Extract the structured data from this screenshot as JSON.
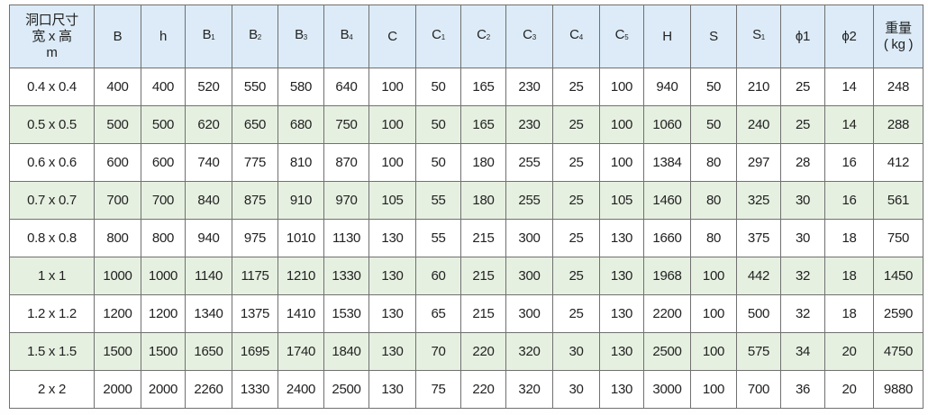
{
  "colors": {
    "header_bg": "#dcebf7",
    "alt_row_bg": "#e6f0e1",
    "border": "#707070"
  },
  "table": {
    "headers": [
      {
        "main": "洞口尺寸\n宽 x 高\nm",
        "sub": ""
      },
      {
        "main": "B",
        "sub": ""
      },
      {
        "main": "h",
        "sub": ""
      },
      {
        "main": "B",
        "sub": "1"
      },
      {
        "main": "B",
        "sub": "2"
      },
      {
        "main": "B",
        "sub": "3"
      },
      {
        "main": "B",
        "sub": "4"
      },
      {
        "main": "C",
        "sub": ""
      },
      {
        "main": "C",
        "sub": "1"
      },
      {
        "main": "C",
        "sub": "2"
      },
      {
        "main": "C",
        "sub": "3"
      },
      {
        "main": "C",
        "sub": "4"
      },
      {
        "main": "C",
        "sub": "5"
      },
      {
        "main": "H",
        "sub": ""
      },
      {
        "main": "S",
        "sub": ""
      },
      {
        "main": "S",
        "sub": "1"
      },
      {
        "main": "ϕ1",
        "sub": ""
      },
      {
        "main": "ϕ2",
        "sub": ""
      },
      {
        "main": "重量\n( kg )",
        "sub": ""
      }
    ],
    "rows": [
      [
        "0.4 x 0.4",
        "400",
        "400",
        "520",
        "550",
        "580",
        "640",
        "100",
        "50",
        "165",
        "230",
        "25",
        "100",
        "940",
        "50",
        "210",
        "25",
        "14",
        "248"
      ],
      [
        "0.5 x 0.5",
        "500",
        "500",
        "620",
        "650",
        "680",
        "750",
        "100",
        "50",
        "165",
        "230",
        "25",
        "100",
        "1060",
        "50",
        "240",
        "25",
        "14",
        "288"
      ],
      [
        "0.6 x 0.6",
        "600",
        "600",
        "740",
        "775",
        "810",
        "870",
        "100",
        "50",
        "180",
        "255",
        "25",
        "100",
        "1384",
        "80",
        "297",
        "28",
        "16",
        "412"
      ],
      [
        "0.7 x 0.7",
        "700",
        "700",
        "840",
        "875",
        "910",
        "970",
        "105",
        "55",
        "180",
        "255",
        "25",
        "105",
        "1460",
        "80",
        "325",
        "30",
        "16",
        "561"
      ],
      [
        "0.8 x 0.8",
        "800",
        "800",
        "940",
        "975",
        "1010",
        "1130",
        "130",
        "55",
        "215",
        "300",
        "25",
        "130",
        "1660",
        "80",
        "375",
        "30",
        "18",
        "750"
      ],
      [
        "1 x 1",
        "1000",
        "1000",
        "1140",
        "1175",
        "1210",
        "1330",
        "130",
        "60",
        "215",
        "300",
        "25",
        "130",
        "1968",
        "100",
        "442",
        "32",
        "18",
        "1450"
      ],
      [
        "1.2 x 1.2",
        "1200",
        "1200",
        "1340",
        "1375",
        "1410",
        "1530",
        "130",
        "65",
        "215",
        "300",
        "25",
        "130",
        "2200",
        "100",
        "500",
        "32",
        "18",
        "2590"
      ],
      [
        "1.5 x 1.5",
        "1500",
        "1500",
        "1650",
        "1695",
        "1740",
        "1840",
        "130",
        "70",
        "220",
        "320",
        "30",
        "130",
        "2500",
        "100",
        "575",
        "34",
        "20",
        "4750"
      ],
      [
        "2 x 2",
        "2000",
        "2000",
        "2260",
        "1330",
        "2400",
        "2500",
        "130",
        "75",
        "220",
        "320",
        "30",
        "130",
        "3000",
        "100",
        "700",
        "36",
        "20",
        "9880"
      ]
    ]
  }
}
